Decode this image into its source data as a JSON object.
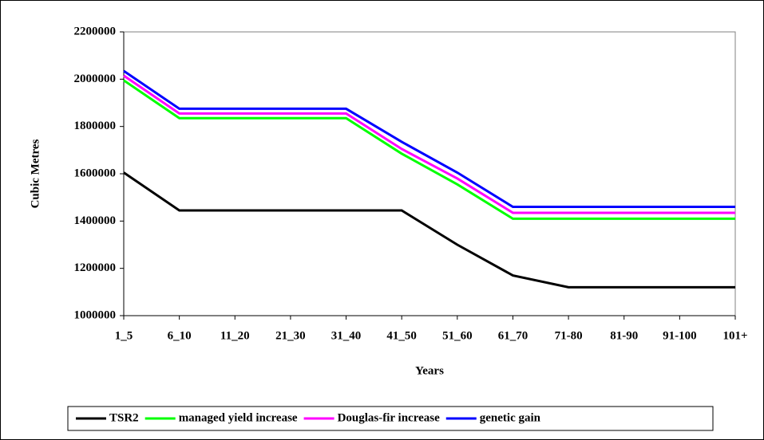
{
  "chart_data": {
    "type": "line",
    "x_label": "Years",
    "y_label": "Cubic Metres",
    "categories": [
      "1_5",
      "6_10",
      "11_20",
      "21_30",
      "31_40",
      "41_50",
      "51_60",
      "61_70",
      "71-80",
      "81-90",
      "91-100",
      "101+"
    ],
    "series": [
      {
        "name": "TSR2",
        "color": "#000000",
        "values": [
          1605000,
          1445000,
          1445000,
          1445000,
          1445000,
          1445000,
          1300000,
          1170000,
          1120000,
          1120000,
          1120000,
          1120000
        ]
      },
      {
        "name": "managed yield increase",
        "color": "#00ff00",
        "values": [
          1995000,
          1835000,
          1835000,
          1835000,
          1835000,
          1685000,
          1555000,
          1410000,
          1410000,
          1410000,
          1410000,
          1410000
        ]
      },
      {
        "name": "Douglas-fir increase",
        "color": "#ff00ff",
        "values": [
          2015000,
          1855000,
          1855000,
          1855000,
          1855000,
          1705000,
          1580000,
          1435000,
          1435000,
          1435000,
          1435000,
          1435000
        ]
      },
      {
        "name": "genetic gain",
        "color": "#0000ff",
        "values": [
          2035000,
          1875000,
          1875000,
          1875000,
          1875000,
          1735000,
          1605000,
          1460000,
          1460000,
          1460000,
          1460000,
          1460000
        ]
      }
    ],
    "ylim": [
      1000000,
      2200000
    ],
    "yticks": [
      1000000,
      1200000,
      1400000,
      1600000,
      1800000,
      2000000,
      2200000
    ],
    "legend": "bottom"
  }
}
